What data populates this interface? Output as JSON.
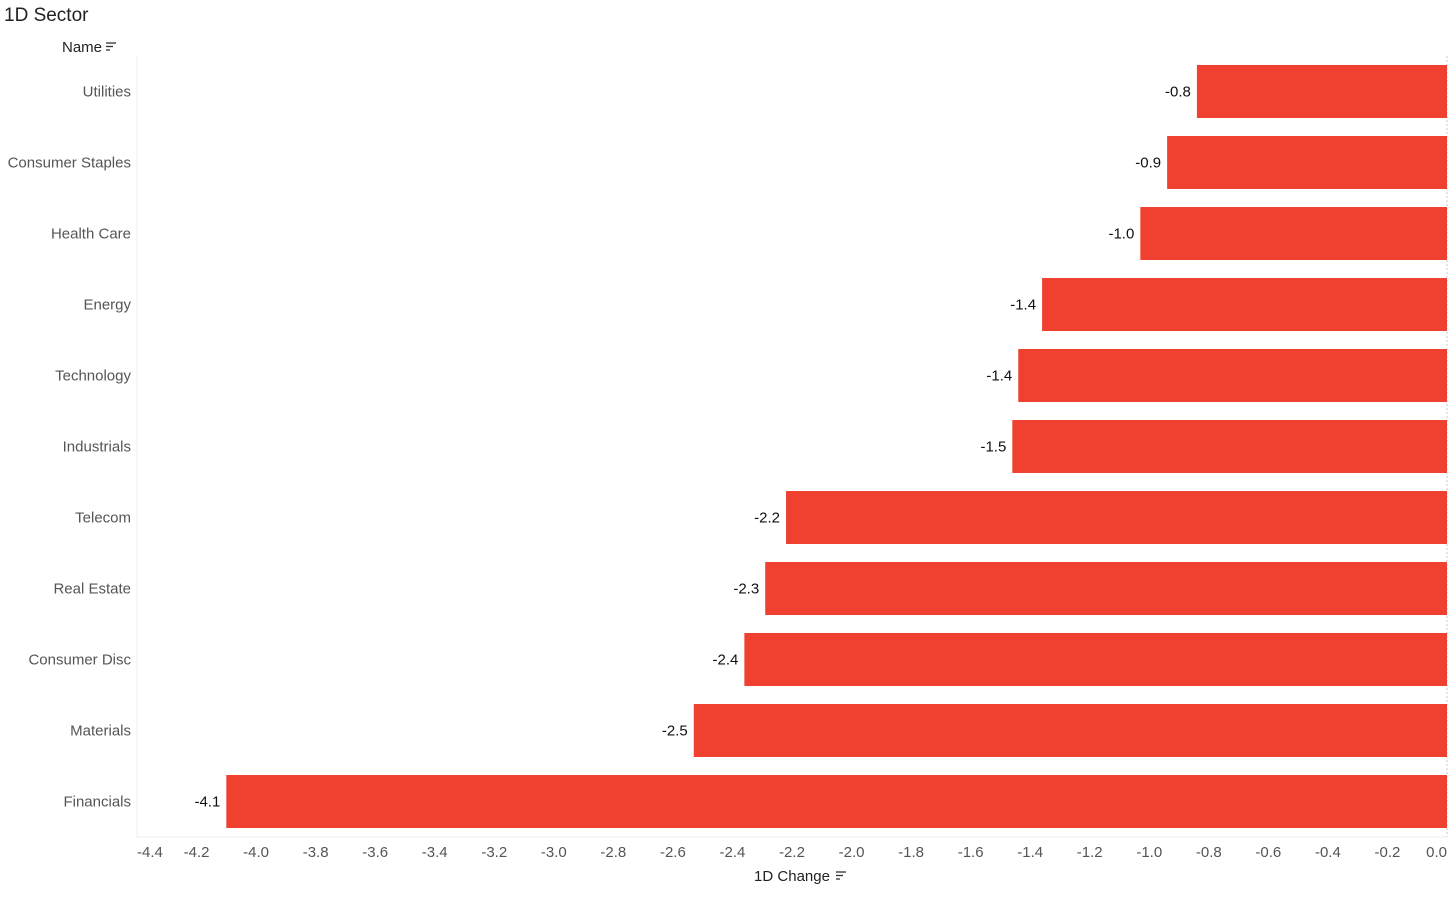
{
  "title": "1D Sector",
  "header": {
    "name_label": "Name",
    "sort_icon": "sort-icon"
  },
  "chart_data": {
    "type": "bar",
    "orientation": "horizontal",
    "categories": [
      "Utilities",
      "Consumer Staples",
      "Health Care",
      "Energy",
      "Technology",
      "Industrials",
      "Telecom",
      "Real Estate",
      "Consumer Disc",
      "Materials",
      "Financials"
    ],
    "values": [
      -0.84,
      -0.94,
      -1.03,
      -1.36,
      -1.44,
      -1.46,
      -2.22,
      -2.29,
      -2.36,
      -2.53,
      -4.1
    ],
    "data_labels": [
      "-0.8",
      "-0.9",
      "-1.0",
      "-1.4",
      "-1.4",
      "-1.5",
      "-2.2",
      "-2.3",
      "-2.4",
      "-2.5",
      "-4.1"
    ],
    "xlabel": "1D Change",
    "xlim": [
      -4.4,
      0.0
    ],
    "x_ticks": [
      -4.4,
      -4.2,
      -4.0,
      -3.8,
      -3.6,
      -3.4,
      -3.2,
      -3.0,
      -2.8,
      -2.6,
      -2.4,
      -2.2,
      -2.0,
      -1.8,
      -1.6,
      -1.4,
      -1.2,
      -1.0,
      -0.8,
      -0.6,
      -0.4,
      -0.2,
      0.0
    ],
    "x_tick_labels": [
      "-4.4",
      "-4.2",
      "-4.0",
      "-3.8",
      "-3.6",
      "-3.4",
      "-3.2",
      "-3.0",
      "-2.8",
      "-2.6",
      "-2.4",
      "-2.2",
      "-2.0",
      "-1.8",
      "-1.6",
      "-1.4",
      "-1.2",
      "-1.0",
      "-0.8",
      "-0.6",
      "-0.4",
      "-0.2",
      "0.0"
    ],
    "grid": false,
    "bar_color": "#f04030"
  }
}
